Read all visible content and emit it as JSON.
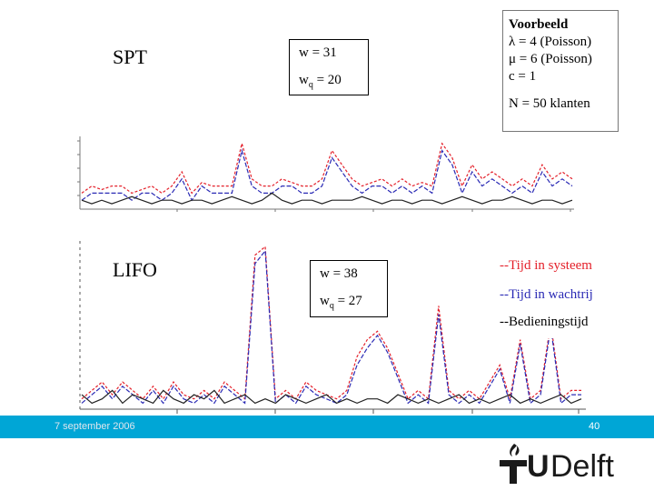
{
  "slide": {
    "spt_label": "SPT",
    "lifo_label": "LIFO",
    "spt_box": {
      "w": "w = 31",
      "wq_prefix": "w",
      "wq_sub": "q",
      "wq_value": " = 20"
    },
    "lifo_box": {
      "w": "w = 38",
      "wq_prefix": "w",
      "wq_sub": "q",
      "wq_value": " = 27"
    },
    "example_box": {
      "title": "Voorbeeld",
      "lambda": "λ = 4 (Poisson)",
      "mu": "μ = 6 (Poisson)",
      "c": "c = 1",
      "n": "N = 50 klanten"
    },
    "legend": {
      "system": "--Tijd in systeem",
      "queue": "--Tijd in wachtrij",
      "service": "--Bedieningstijd"
    },
    "footer": {
      "date": "7 september 2006",
      "page": "40"
    },
    "logo": {
      "t": "T",
      "u": "U",
      "rest": "Delft"
    },
    "colors": {
      "system": "#e4202a",
      "queue": "#2b2bb5",
      "service": "#222222",
      "bar": "#00a6d6",
      "logo": "#1a1a1a"
    }
  },
  "chart_data": [
    {
      "type": "line",
      "title": "SPT",
      "x": [
        1,
        2,
        3,
        4,
        5,
        6,
        7,
        8,
        9,
        10,
        11,
        12,
        13,
        14,
        15,
        16,
        17,
        18,
        19,
        20,
        21,
        22,
        23,
        24,
        25,
        26,
        27,
        28,
        29,
        30,
        31,
        32,
        33,
        34,
        35,
        36,
        37,
        38,
        39,
        40,
        41,
        42,
        43,
        44,
        45,
        46,
        47,
        48,
        49,
        50
      ],
      "ylim": [
        0,
        10
      ],
      "series": [
        {
          "name": "--Tijd in systeem",
          "values": [
            2,
            3,
            2.5,
            3,
            3,
            2,
            2.5,
            3,
            2,
            3,
            5,
            2,
            3.5,
            3,
            3,
            3,
            9,
            4,
            3,
            3,
            4,
            3.5,
            3,
            3,
            4,
            8,
            6,
            4,
            3,
            3.5,
            4,
            3,
            4,
            3,
            3.5,
            3,
            9,
            7,
            3,
            6,
            4,
            5,
            4,
            3,
            4,
            3,
            6,
            4,
            5,
            4
          ]
        },
        {
          "name": "--Tijd in wachtrij",
          "values": [
            1,
            2,
            2,
            2,
            2,
            1,
            2,
            2,
            1,
            2,
            4,
            1,
            3,
            2,
            2,
            2,
            8,
            3,
            2,
            2,
            3,
            3,
            2,
            2,
            3,
            7,
            5,
            3,
            2,
            3,
            3,
            2,
            3,
            2,
            3,
            2,
            8,
            6,
            2,
            5,
            3,
            4,
            3,
            2,
            3,
            2,
            5,
            3,
            4,
            3
          ]
        },
        {
          "name": "--Bedieningstijd",
          "values": [
            1,
            0.5,
            1,
            0.5,
            1,
            1.5,
            1,
            0.5,
            1,
            1,
            0.5,
            1,
            1,
            0.5,
            1,
            1.5,
            1,
            0.5,
            1,
            2,
            1,
            0.5,
            1,
            1,
            0.5,
            1,
            1,
            1,
            1.5,
            1,
            0.5,
            1,
            1,
            0.5,
            1,
            1,
            0.5,
            1,
            1.5,
            1,
            0.5,
            1,
            1,
            1.5,
            1,
            0.5,
            1,
            1,
            0.5,
            1
          ]
        }
      ]
    },
    {
      "type": "line",
      "title": "LIFO",
      "x": [
        1,
        2,
        3,
        4,
        5,
        6,
        7,
        8,
        9,
        10,
        11,
        12,
        13,
        14,
        15,
        16,
        17,
        18,
        19,
        20,
        21,
        22,
        23,
        24,
        25,
        26,
        27,
        28,
        29,
        30,
        31,
        32,
        33,
        34,
        35,
        36,
        37,
        38,
        39,
        40,
        41,
        42,
        43,
        44,
        45,
        46,
        47,
        48,
        49,
        50
      ],
      "x_ticks": [
        "10",
        "20"
      ],
      "ylim": [
        0,
        20
      ],
      "series": [
        {
          "name": "--Tijd in systeem",
          "values": [
            1,
            2,
            3,
            1.5,
            3,
            2,
            1,
            2.5,
            1,
            3,
            1.5,
            1,
            2,
            1,
            3,
            2,
            1,
            18,
            19,
            1,
            2,
            1,
            3,
            2,
            1.5,
            1,
            2,
            6,
            8,
            9,
            7,
            4,
            1,
            2,
            1,
            12,
            2,
            1,
            2,
            1,
            3,
            5,
            1,
            8,
            1,
            2,
            10,
            1,
            2,
            2
          ]
        },
        {
          "name": "--Tijd in wachtrij",
          "values": [
            0.5,
            1.5,
            2.5,
            1,
            2.5,
            1.5,
            0.5,
            2,
            0.5,
            2.5,
            1,
            0.5,
            1.5,
            0.5,
            2.5,
            1.5,
            0.5,
            17,
            18.5,
            0.5,
            1.5,
            0.5,
            2.5,
            1.5,
            1,
            0.5,
            1.5,
            5,
            7,
            8.5,
            6.5,
            3.5,
            0.5,
            1.5,
            0.5,
            11,
            1.5,
            0.5,
            1.5,
            0.5,
            2.5,
            4.5,
            0.5,
            7.5,
            0.5,
            1.5,
            9.5,
            0.5,
            1.5,
            1.5
          ]
        },
        {
          "name": "--Bedieningstijd",
          "values": [
            1.5,
            0.5,
            1,
            2,
            0.5,
            1.5,
            1,
            0.5,
            2,
            1,
            0.5,
            1.5,
            1,
            2,
            0.5,
            1,
            1.5,
            0.5,
            1,
            0.5,
            1.5,
            1,
            0.5,
            1,
            1.5,
            0.5,
            1,
            0.5,
            1,
            1,
            0.5,
            1.5,
            1,
            0.5,
            1,
            0.5,
            1,
            1.5,
            0.5,
            1,
            0.5,
            1,
            1.5,
            0.5,
            1,
            0.5,
            1,
            1.5,
            0.5,
            1
          ]
        }
      ]
    }
  ]
}
